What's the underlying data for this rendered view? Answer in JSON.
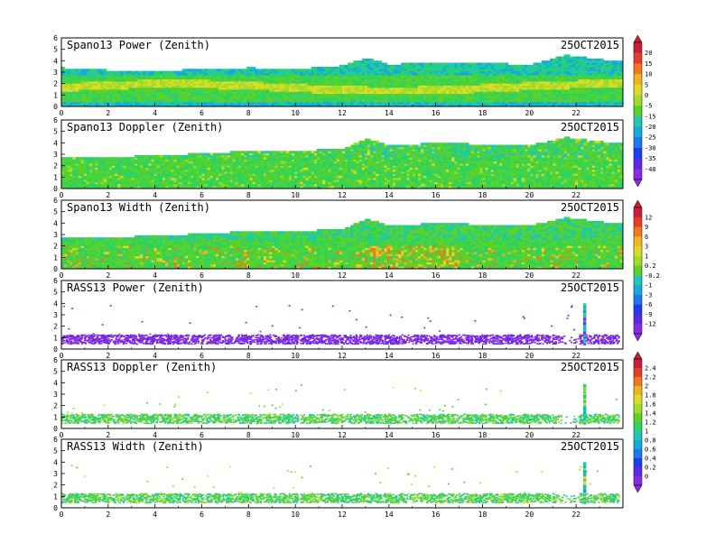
{
  "chart_data": [
    {
      "type": "heatmap",
      "title": "Spano13 Power (Zenith)",
      "date": "25OCT2015",
      "xlim": [
        0,
        24
      ],
      "ylim": [
        0,
        6
      ],
      "x_ticks": [
        "0",
        "2",
        "4",
        "6",
        "8",
        "10",
        "12",
        "14",
        "16",
        "18",
        "20",
        "22"
      ],
      "y_ticks": [
        "0",
        "1",
        "2",
        "3",
        "4",
        "5",
        "6"
      ],
      "field": "power",
      "colorbar": {
        "group": 0,
        "labels": [
          "20",
          "15",
          "10",
          "5",
          "0",
          "-5",
          "-15",
          "-20",
          "-25",
          "-30",
          "-35",
          "-40"
        ]
      },
      "top_height_by_hour": [
        {
          "x": 0,
          "y": 3.3
        },
        {
          "x": 2,
          "y": 3.1
        },
        {
          "x": 4,
          "y": 3.0
        },
        {
          "x": 6,
          "y": 3.2
        },
        {
          "x": 8,
          "y": 3.3
        },
        {
          "x": 10,
          "y": 3.2
        },
        {
          "x": 12,
          "y": 3.5
        },
        {
          "x": 13,
          "y": 4.2
        },
        {
          "x": 14,
          "y": 3.6
        },
        {
          "x": 16,
          "y": 3.8
        },
        {
          "x": 18,
          "y": 3.7
        },
        {
          "x": 20,
          "y": 3.6
        },
        {
          "x": 21.5,
          "y": 4.4
        },
        {
          "x": 23.6,
          "y": 3.9
        }
      ]
    },
    {
      "type": "heatmap",
      "title": "Spano13 Doppler (Zenith)",
      "date": "25OCT2015",
      "xlim": [
        0,
        24
      ],
      "ylim": [
        0,
        6
      ],
      "x_ticks": [
        "0",
        "2",
        "4",
        "6",
        "8",
        "10",
        "12",
        "14",
        "16",
        "18",
        "20",
        "22"
      ],
      "y_ticks": [
        "0",
        "1",
        "2",
        "3",
        "4",
        "5",
        "6"
      ],
      "field": "doppler",
      "colorbar": null,
      "top_height_by_hour": [
        {
          "x": 0,
          "y": 2.6
        },
        {
          "x": 2,
          "y": 2.7
        },
        {
          "x": 4,
          "y": 2.8
        },
        {
          "x": 6,
          "y": 3.0
        },
        {
          "x": 8,
          "y": 3.2
        },
        {
          "x": 10,
          "y": 3.2
        },
        {
          "x": 12,
          "y": 3.4
        },
        {
          "x": 13,
          "y": 4.3
        },
        {
          "x": 14,
          "y": 3.7
        },
        {
          "x": 16,
          "y": 3.9
        },
        {
          "x": 18,
          "y": 3.8
        },
        {
          "x": 20,
          "y": 3.7
        },
        {
          "x": 21.5,
          "y": 4.4
        },
        {
          "x": 23.6,
          "y": 3.9
        }
      ]
    },
    {
      "type": "heatmap",
      "title": "Spano13 Width (Zenith)",
      "date": "25OCT2015",
      "xlim": [
        0,
        24
      ],
      "ylim": [
        0,
        6
      ],
      "x_ticks": [
        "0",
        "2",
        "4",
        "6",
        "8",
        "10",
        "12",
        "14",
        "16",
        "18",
        "20",
        "22"
      ],
      "y_ticks": [
        "0",
        "1",
        "2",
        "3",
        "4",
        "5",
        "6"
      ],
      "field": "width",
      "colorbar": {
        "group": 1,
        "labels": [
          "12",
          "9",
          "6",
          "3",
          "1",
          "0.2",
          "-0.2",
          "-1",
          "-3",
          "-6",
          "-9",
          "-12"
        ]
      },
      "top_height_by_hour": [
        {
          "x": 0,
          "y": 2.6
        },
        {
          "x": 2,
          "y": 2.7
        },
        {
          "x": 4,
          "y": 2.8
        },
        {
          "x": 6,
          "y": 3.0
        },
        {
          "x": 8,
          "y": 3.2
        },
        {
          "x": 10,
          "y": 3.2
        },
        {
          "x": 12,
          "y": 3.4
        },
        {
          "x": 13,
          "y": 4.3
        },
        {
          "x": 14,
          "y": 3.7
        },
        {
          "x": 16,
          "y": 3.9
        },
        {
          "x": 18,
          "y": 3.8
        },
        {
          "x": 20,
          "y": 3.7
        },
        {
          "x": 21.5,
          "y": 4.4
        },
        {
          "x": 23.6,
          "y": 3.9
        }
      ]
    },
    {
      "type": "scatter",
      "title": "RASS13 Power (Zenith)",
      "date": "25OCT2015",
      "xlim": [
        0,
        24
      ],
      "ylim": [
        0,
        6
      ],
      "x_ticks": [
        "0",
        "2",
        "4",
        "6",
        "8",
        "10",
        "12",
        "14",
        "16",
        "18",
        "20",
        "22"
      ],
      "y_ticks": [
        "0",
        "1",
        "2",
        "3",
        "4",
        "5",
        "6"
      ],
      "field": "rass_power",
      "colorbar": null,
      "band_height": [
        0.5,
        1.3
      ],
      "spike": {
        "x": 22.3,
        "y_top": 3.9
      }
    },
    {
      "type": "scatter",
      "title": "RASS13 Doppler (Zenith)",
      "date": "25OCT2015",
      "xlim": [
        0,
        24
      ],
      "ylim": [
        0,
        6
      ],
      "x_ticks": [
        "0",
        "2",
        "4",
        "6",
        "8",
        "10",
        "12",
        "14",
        "16",
        "18",
        "20",
        "22"
      ],
      "y_ticks": [
        "0",
        "1",
        "2",
        "3",
        "4",
        "5",
        "6"
      ],
      "field": "rass_doppler",
      "colorbar": {
        "group": 2,
        "labels": [
          "2.4",
          "2.2",
          "2",
          "1.8",
          "1.6",
          "1.4",
          "1.2",
          "1",
          "0.8",
          "0.6",
          "0.4",
          "0.2",
          "0"
        ]
      },
      "band_height": [
        0.5,
        1.3
      ],
      "spike": {
        "x": 22.3,
        "y_top": 3.8
      }
    },
    {
      "type": "scatter",
      "title": "RASS13 Width (Zenith)",
      "date": "25OCT2015",
      "xlim": [
        0,
        24
      ],
      "ylim": [
        0,
        6
      ],
      "x_ticks": [
        "0",
        "2",
        "4",
        "6",
        "8",
        "10",
        "12",
        "14",
        "16",
        "18",
        "20",
        "22"
      ],
      "y_ticks": [
        "0",
        "1",
        "2",
        "3",
        "4",
        "5",
        "6"
      ],
      "field": "rass_width",
      "colorbar": null,
      "band_height": [
        0.5,
        1.3
      ],
      "spike": {
        "x": 22.3,
        "y_top": 3.9
      }
    }
  ],
  "colors": {
    "palette": [
      "#8a2be2",
      "#5a28e6",
      "#1e3cf0",
      "#1e78f0",
      "#14aadc",
      "#1ec8b4",
      "#2cd264",
      "#5ad228",
      "#a0dc28",
      "#dcdc28",
      "#f0b41e",
      "#f0781e",
      "#e63c28",
      "#c81e3c"
    ],
    "frame": "#000000",
    "background": "#ffffff"
  }
}
